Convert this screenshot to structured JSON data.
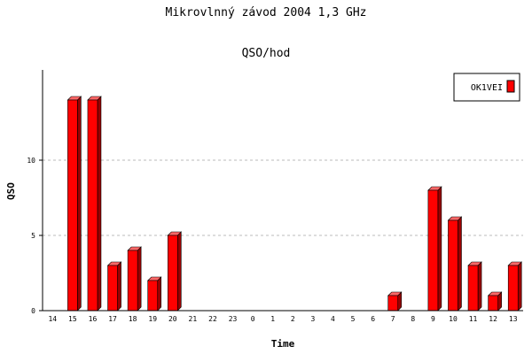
{
  "chart_data": {
    "type": "bar",
    "title": "Mikrovlnný závod 2004 1,3 GHz",
    "subtitle": "QSO/hod",
    "xlabel": "Time",
    "ylabel": "QSO",
    "categories": [
      "14",
      "15",
      "16",
      "17",
      "18",
      "19",
      "20",
      "21",
      "22",
      "23",
      "0",
      "1",
      "2",
      "3",
      "4",
      "5",
      "6",
      "7",
      "8",
      "9",
      "10",
      "11",
      "12",
      "13"
    ],
    "series": [
      {
        "name": "OK1VEI",
        "color": "#ff0000",
        "values": [
          0,
          14,
          14,
          3,
          4,
          2,
          5,
          0,
          0,
          0,
          0,
          0,
          0,
          0,
          0,
          0,
          0,
          1,
          0,
          8,
          6,
          3,
          1,
          3
        ]
      }
    ],
    "ylim": [
      0,
      16
    ],
    "yticks": [
      0,
      5,
      10
    ],
    "grid": true,
    "legend": "top-right"
  }
}
